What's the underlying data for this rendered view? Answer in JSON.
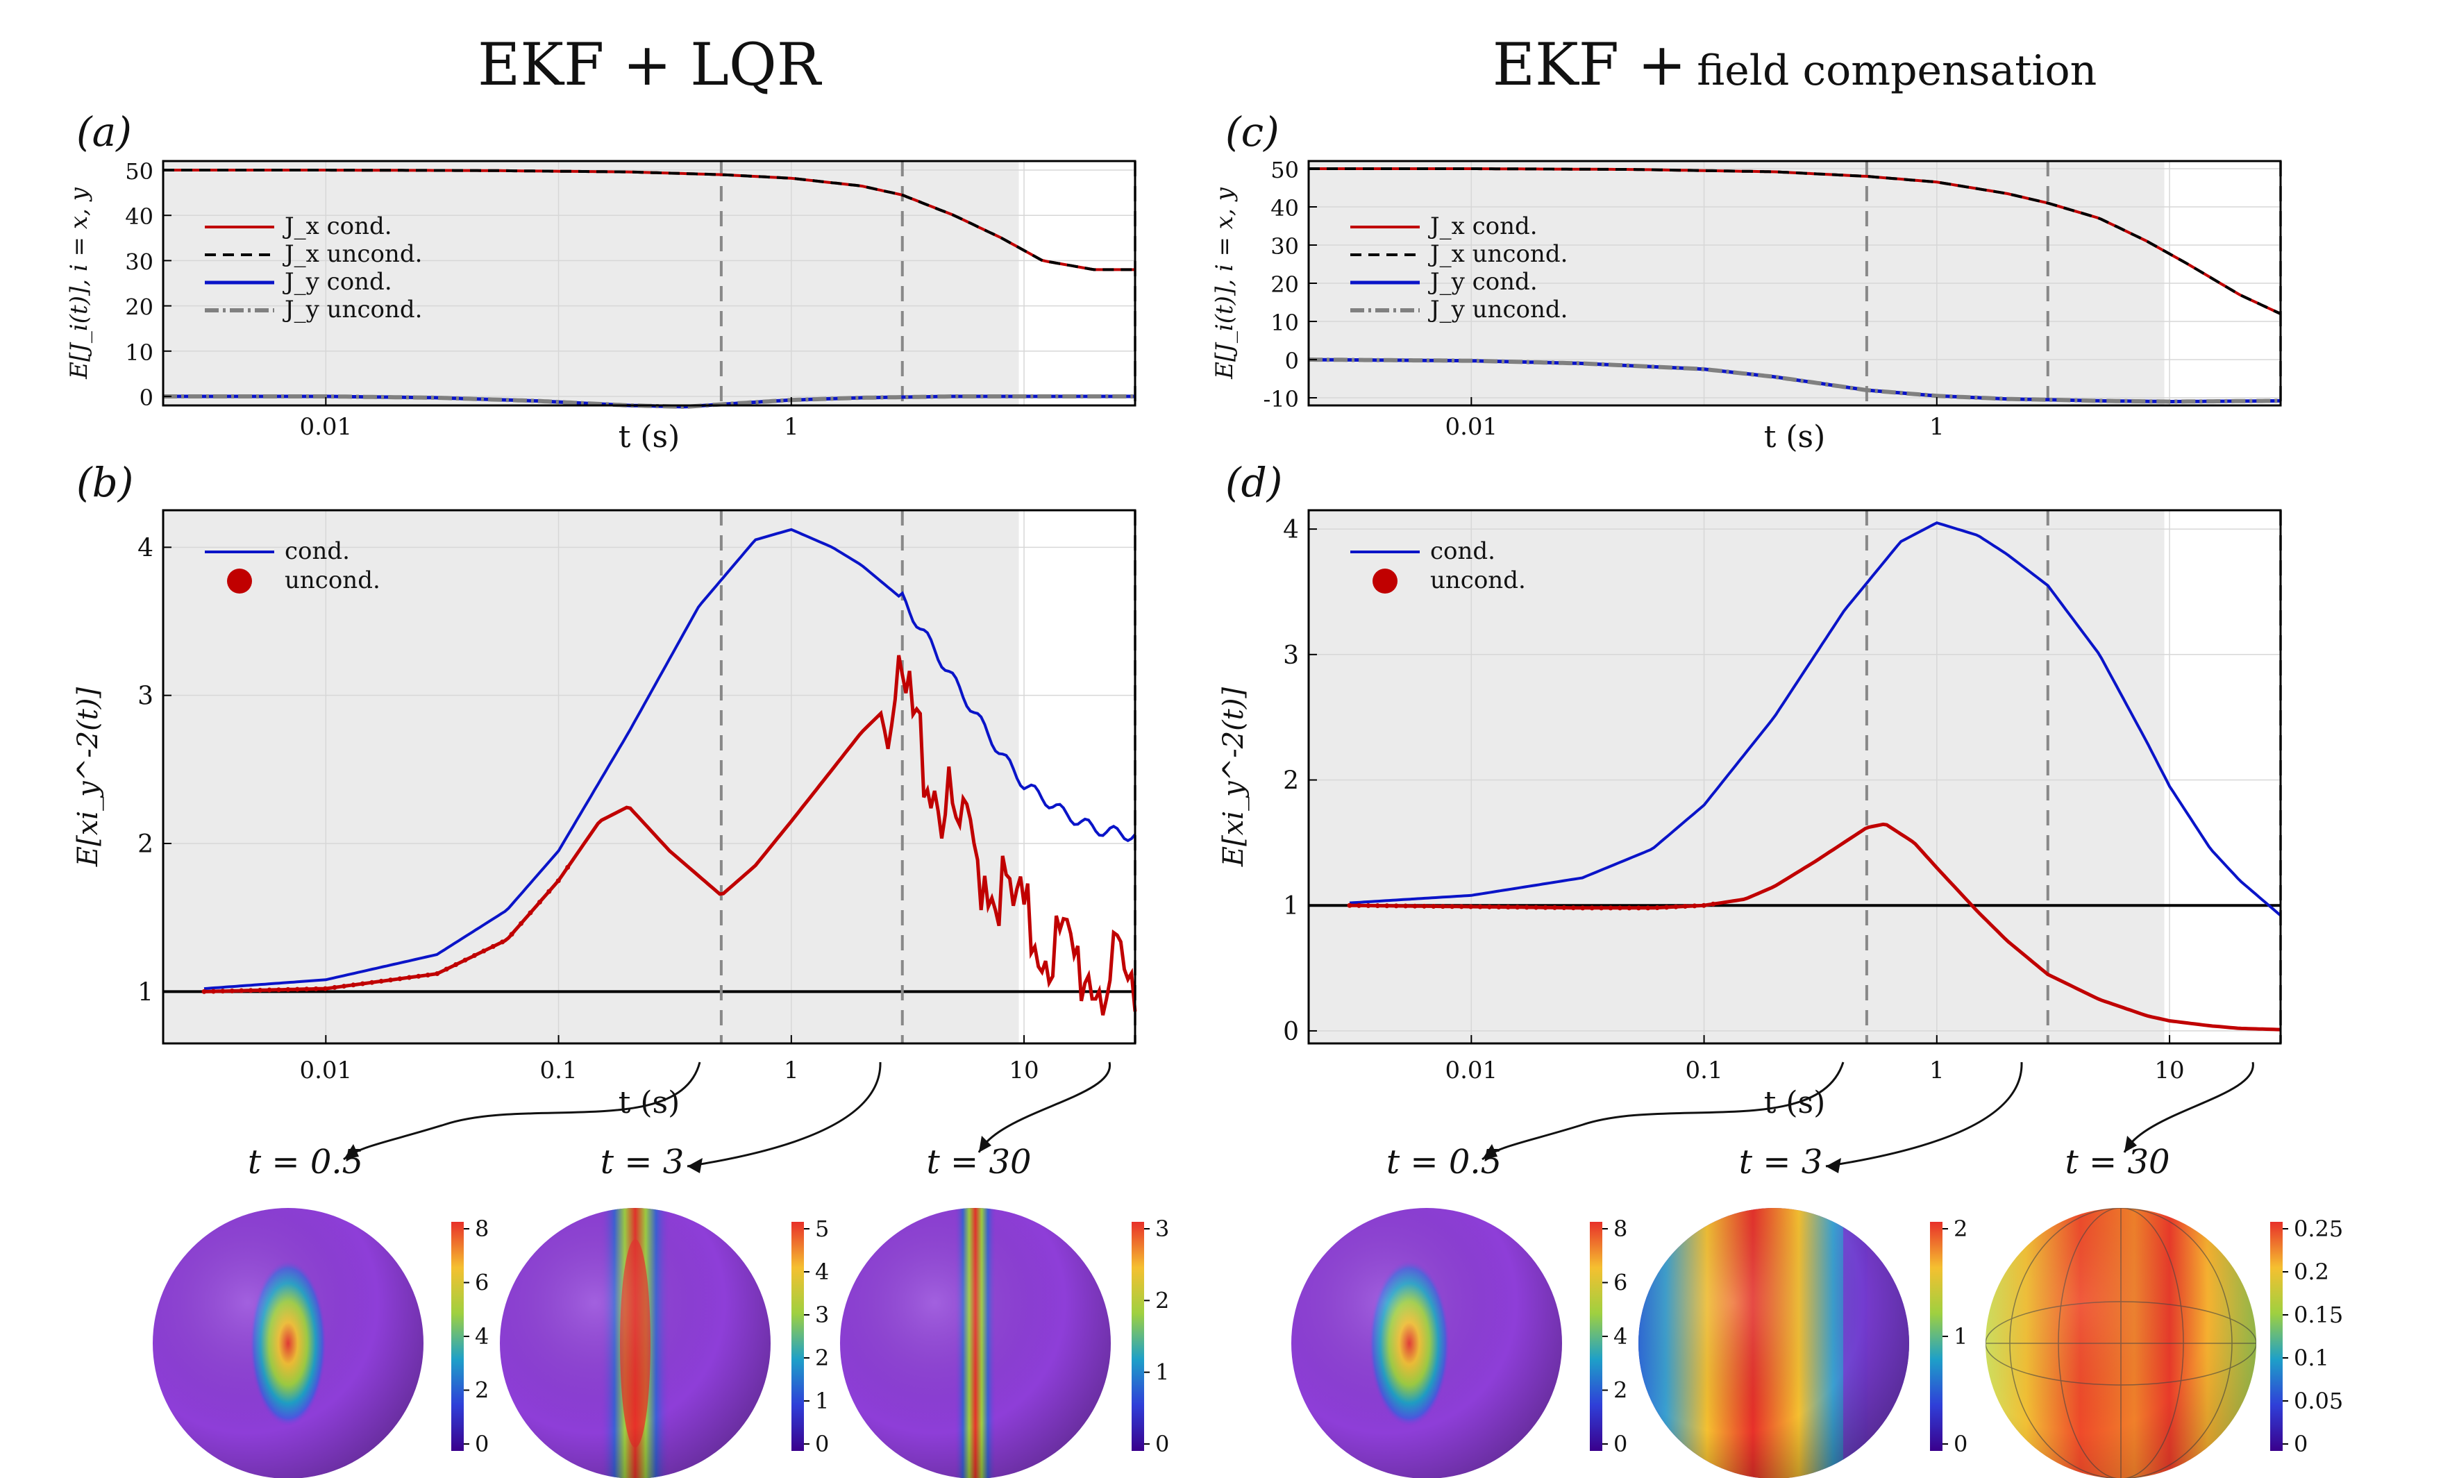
{
  "colors": {
    "cond_red": "#c00000",
    "uncond_black": "#000000",
    "cond_blue": "#0a14c8",
    "uncond_gray": "#808080",
    "shade": "#ebebeb",
    "grid": "#d7d7d7",
    "dash": "#888888"
  },
  "titles": {
    "left": "EKF + LQR",
    "right_main": "EKF +",
    "right_small": "field compensation"
  },
  "panel_labels": {
    "a": "(a)",
    "b": "(b)",
    "c": "(c)",
    "d": "(d)"
  },
  "xlabel": "t (s)",
  "ylabel_top": "𝔼[J_i(t)], i = x, y",
  "ylabel_bottom": "𝔼[ξ_y^{-2}(t)]",
  "snapshot_labels": [
    "t = 0.5",
    "t = 3",
    "t = 30"
  ],
  "colorbars": {
    "a": [
      "8",
      "6",
      "4",
      "2",
      "0"
    ],
    "b": [
      "5",
      "4",
      "3",
      "2",
      "1",
      "0"
    ],
    "c": [
      "3",
      "2",
      "1",
      "0"
    ],
    "d": [
      "8",
      "6",
      "4",
      "2",
      "0"
    ],
    "e": [
      "2",
      "1",
      "0"
    ],
    "f": [
      "0.25",
      "0.2",
      "0.15",
      "0.1",
      "0.05",
      "0"
    ]
  },
  "chart_data": [
    {
      "id": "a",
      "type": "line",
      "title": "(a)",
      "xlabel": "t (s)",
      "ylabel": "E[J_i(t)], i = x, y",
      "xscale": "log",
      "xlim": [
        0.002,
        30
      ],
      "ylim": [
        -2,
        52
      ],
      "yticks": [
        0,
        10,
        20,
        30,
        40,
        50
      ],
      "xticks": [
        0.01,
        1
      ],
      "shaded_until": 9.5,
      "vlines": [
        0.5,
        3,
        30
      ],
      "legend": [
        "J_x cond.",
        "J_x uncond.",
        "J_y cond.",
        "J_y uncond."
      ],
      "series": [
        {
          "name": "J_x cond.",
          "x": [
            0.002,
            0.01,
            0.05,
            0.2,
            0.5,
            1,
            2,
            3,
            5,
            8,
            12,
            20,
            30
          ],
          "values": [
            50,
            50,
            49.9,
            49.6,
            49,
            48.2,
            46.5,
            44.5,
            40,
            35,
            30,
            28,
            28
          ]
        },
        {
          "name": "J_x uncond.",
          "x": [
            0.002,
            0.01,
            0.05,
            0.2,
            0.5,
            1,
            2,
            3,
            5,
            8,
            12,
            20,
            30
          ],
          "values": [
            50,
            50,
            49.9,
            49.6,
            49,
            48.2,
            46.5,
            44.5,
            40,
            35,
            30,
            28,
            28
          ]
        },
        {
          "name": "J_y cond.",
          "x": [
            0.002,
            0.01,
            0.03,
            0.08,
            0.2,
            0.35,
            0.6,
            1,
            2,
            5,
            30
          ],
          "values": [
            0,
            0,
            -0.3,
            -1,
            -2,
            -2.3,
            -1.5,
            -0.8,
            -0.3,
            0,
            0
          ]
        },
        {
          "name": "J_y uncond.",
          "x": [
            0.002,
            0.01,
            0.03,
            0.08,
            0.2,
            0.35,
            0.6,
            1,
            2,
            5,
            30
          ],
          "values": [
            0,
            0,
            -0.3,
            -1,
            -2,
            -2.3,
            -1.5,
            -0.8,
            -0.3,
            0,
            0
          ]
        }
      ]
    },
    {
      "id": "b",
      "type": "line",
      "title": "(b)",
      "xlabel": "t (s)",
      "ylabel": "E[xi_y^-2(t)]",
      "xscale": "log",
      "xlim": [
        0.002,
        30
      ],
      "ylim": [
        0.65,
        4.25
      ],
      "yticks": [
        1,
        2,
        3,
        4
      ],
      "xticks": [
        0.01,
        0.1,
        1,
        10
      ],
      "xtick_labels": [
        "0.01",
        "0.1",
        "1",
        "10"
      ],
      "shaded_until": 9.5,
      "vlines": [
        0.5,
        3,
        30
      ],
      "hline": 1,
      "legend": [
        "cond.",
        "uncond."
      ],
      "series": [
        {
          "name": "cond.",
          "x": [
            0.003,
            0.01,
            0.03,
            0.06,
            0.1,
            0.2,
            0.4,
            0.7,
            1,
            1.5,
            2,
            3,
            5,
            8,
            10,
            15,
            20,
            30
          ],
          "values": [
            1.02,
            1.08,
            1.25,
            1.55,
            1.95,
            2.75,
            3.6,
            4.05,
            4.12,
            4.0,
            3.88,
            3.65,
            3.1,
            2.6,
            2.4,
            2.2,
            2.1,
            2.05
          ]
        },
        {
          "name": "uncond.",
          "x": [
            0.003,
            0.01,
            0.03,
            0.06,
            0.1,
            0.15,
            0.2,
            0.3,
            0.5,
            0.7,
            1,
            1.5,
            2,
            2.7,
            3.2,
            4,
            5,
            7,
            10,
            15,
            20,
            30
          ],
          "values": [
            1.0,
            1.02,
            1.12,
            1.35,
            1.75,
            2.15,
            2.25,
            1.95,
            1.65,
            1.85,
            2.15,
            2.5,
            2.75,
            2.95,
            2.9,
            2.45,
            2.1,
            1.8,
            1.45,
            1.25,
            1.1,
            1.0
          ]
        }
      ]
    },
    {
      "id": "c",
      "type": "line",
      "title": "(c)",
      "xlabel": "t (s)",
      "ylabel": "E[J_i(t)], i = x, y",
      "xscale": "log",
      "xlim": [
        0.002,
        30
      ],
      "ylim": [
        -12,
        52
      ],
      "yticks": [
        -10,
        0,
        10,
        20,
        30,
        40,
        50
      ],
      "xticks": [
        0.01,
        1
      ],
      "shaded_until": 9.5,
      "vlines": [
        0.5,
        3,
        30
      ],
      "legend": [
        "J_x cond.",
        "J_x uncond.",
        "J_y cond.",
        "J_y uncond."
      ],
      "series": [
        {
          "name": "J_x cond.",
          "x": [
            0.002,
            0.01,
            0.05,
            0.2,
            0.5,
            1,
            2,
            3,
            5,
            8,
            12,
            20,
            30
          ],
          "values": [
            50,
            50,
            49.8,
            49.2,
            48,
            46.5,
            43.5,
            41,
            37,
            31,
            25,
            17,
            12
          ]
        },
        {
          "name": "J_x uncond.",
          "x": [
            0.002,
            0.01,
            0.05,
            0.2,
            0.5,
            1,
            2,
            3,
            5,
            8,
            12,
            20,
            30
          ],
          "values": [
            50,
            50,
            49.8,
            49.2,
            48,
            46.5,
            43.5,
            41,
            37,
            31,
            25,
            17,
            12
          ]
        },
        {
          "name": "J_y cond.",
          "x": [
            0.002,
            0.01,
            0.03,
            0.1,
            0.2,
            0.5,
            1,
            2,
            3,
            5,
            10,
            30
          ],
          "values": [
            0,
            -0.3,
            -1,
            -2.5,
            -4.5,
            -8,
            -9.5,
            -10.3,
            -10.5,
            -10.8,
            -11,
            -10.8
          ]
        },
        {
          "name": "J_y uncond.",
          "x": [
            0.002,
            0.01,
            0.03,
            0.1,
            0.2,
            0.5,
            1,
            2,
            3,
            5,
            10,
            30
          ],
          "values": [
            0,
            -0.3,
            -1,
            -2.5,
            -4.5,
            -8,
            -9.5,
            -10.3,
            -10.5,
            -10.8,
            -11,
            -10.8
          ]
        }
      ]
    },
    {
      "id": "d",
      "type": "line",
      "title": "(d)",
      "xlabel": "t (s)",
      "ylabel": "E[xi_y^-2(t)]",
      "xscale": "log",
      "xlim": [
        0.002,
        30
      ],
      "ylim": [
        -0.1,
        4.15
      ],
      "yticks": [
        0,
        1,
        2,
        3,
        4
      ],
      "xticks": [
        0.01,
        0.1,
        1,
        10
      ],
      "xtick_labels": [
        "0.01",
        "0.1",
        "1",
        "10"
      ],
      "shaded_until": 9.5,
      "vlines": [
        0.5,
        3,
        30
      ],
      "hline": 1,
      "legend": [
        "cond.",
        "uncond."
      ],
      "series": [
        {
          "name": "cond.",
          "x": [
            0.003,
            0.01,
            0.03,
            0.06,
            0.1,
            0.2,
            0.4,
            0.7,
            1,
            1.5,
            2,
            3,
            5,
            8,
            10,
            15,
            20,
            30
          ],
          "values": [
            1.02,
            1.08,
            1.22,
            1.45,
            1.8,
            2.5,
            3.35,
            3.9,
            4.05,
            3.95,
            3.8,
            3.55,
            3.0,
            2.3,
            1.95,
            1.45,
            1.2,
            0.92
          ]
        },
        {
          "name": "uncond.",
          "x": [
            0.003,
            0.01,
            0.03,
            0.06,
            0.1,
            0.15,
            0.2,
            0.3,
            0.5,
            0.6,
            0.8,
            1,
            1.5,
            2,
            3,
            5,
            8,
            10,
            15,
            20,
            30
          ],
          "values": [
            1.0,
            0.99,
            0.98,
            0.98,
            1.0,
            1.05,
            1.15,
            1.35,
            1.62,
            1.65,
            1.5,
            1.3,
            0.95,
            0.72,
            0.45,
            0.25,
            0.12,
            0.08,
            0.04,
            0.02,
            0.01
          ]
        }
      ]
    }
  ]
}
